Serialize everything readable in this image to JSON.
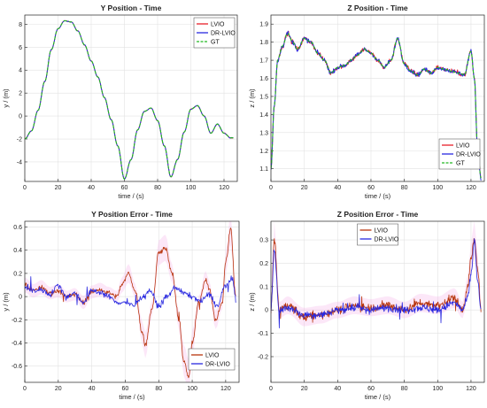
{
  "chart_data": [
    {
      "type": "line",
      "title": "Y Position - Time",
      "xlabel": "time / (s)",
      "ylabel": "y / (m)",
      "xlim": [
        0,
        128
      ],
      "ylim": [
        -5.7,
        8.8
      ],
      "xticks": [
        0,
        20,
        40,
        60,
        80,
        100,
        120
      ],
      "yticks": [
        -4,
        -2,
        0,
        2,
        4,
        6,
        8
      ],
      "grid": true,
      "legend": "top-right",
      "series": [
        {
          "name": "LVIO",
          "color": "#e8202a",
          "style": "solid"
        },
        {
          "name": "DR-LVIO",
          "color": "#2a2ae0",
          "style": "solid"
        },
        {
          "name": "GT",
          "color": "#22b922",
          "style": "dashed"
        }
      ],
      "x": [
        0,
        4,
        8,
        12,
        16,
        20,
        24,
        28,
        32,
        36,
        40,
        44,
        48,
        52,
        56,
        60,
        64,
        68,
        72,
        76,
        80,
        84,
        88,
        92,
        96,
        100,
        104,
        108,
        112,
        116,
        120,
        124,
        126
      ],
      "y": [
        -2.0,
        -1.3,
        0.5,
        3.0,
        5.8,
        7.6,
        8.3,
        8.2,
        7.4,
        6.2,
        4.8,
        3.4,
        1.6,
        -0.3,
        -2.6,
        -5.5,
        -3.8,
        -1.2,
        0.4,
        0.7,
        -0.4,
        -2.6,
        -5.3,
        -3.8,
        -1.4,
        0.6,
        0.9,
        0.0,
        -1.5,
        -0.7,
        -1.5,
        -1.9,
        -1.9
      ]
    },
    {
      "type": "line",
      "title": "Z Position - Time",
      "xlabel": "time / (s)",
      "ylabel": "z / (m)",
      "xlim": [
        0,
        128
      ],
      "ylim": [
        1.03,
        1.95
      ],
      "xticks": [
        0,
        20,
        40,
        60,
        80,
        100,
        120
      ],
      "yticks": [
        1.1,
        1.2,
        1.3,
        1.4,
        1.5,
        1.6,
        1.7,
        1.8,
        1.9
      ],
      "grid": true,
      "legend": "bottom-right",
      "series": [
        {
          "name": "LVIO",
          "color": "#e8202a",
          "style": "solid"
        },
        {
          "name": "DR-LVIO",
          "color": "#2a2ae0",
          "style": "solid"
        },
        {
          "name": "GT",
          "color": "#22b922",
          "style": "dashed"
        }
      ],
      "x": [
        0,
        2,
        4,
        7,
        10,
        13,
        16,
        20,
        24,
        28,
        32,
        36,
        40,
        44,
        48,
        52,
        56,
        60,
        64,
        68,
        72,
        76,
        80,
        84,
        88,
        92,
        96,
        100,
        104,
        108,
        112,
        116,
        120,
        122,
        124,
        126
      ],
      "y": [
        1.1,
        1.45,
        1.7,
        1.78,
        1.85,
        1.8,
        1.76,
        1.82,
        1.8,
        1.74,
        1.7,
        1.63,
        1.66,
        1.67,
        1.7,
        1.73,
        1.76,
        1.74,
        1.7,
        1.66,
        1.7,
        1.82,
        1.68,
        1.64,
        1.62,
        1.65,
        1.63,
        1.66,
        1.65,
        1.64,
        1.63,
        1.62,
        1.75,
        1.6,
        1.2,
        1.05
      ]
    },
    {
      "type": "line",
      "title": "Y Position Error - Time",
      "xlabel": "time / (s)",
      "ylabel": "y / (m)",
      "xlim": [
        0,
        128
      ],
      "ylim": [
        -0.74,
        0.65
      ],
      "xticks": [
        0,
        20,
        40,
        60,
        80,
        100,
        120
      ],
      "yticks": [
        -0.6,
        -0.4,
        -0.2,
        0,
        0.2,
        0.4,
        0.6
      ],
      "grid": true,
      "legend": "bottom-right",
      "series": [
        {
          "name": "LVIO",
          "color": "#b8360e",
          "x": [
            0,
            5,
            10,
            15,
            20,
            25,
            30,
            35,
            40,
            45,
            50,
            55,
            58,
            62,
            66,
            70,
            72,
            76,
            80,
            84,
            88,
            92,
            95,
            98,
            100,
            104,
            108,
            110,
            114,
            118,
            120,
            123,
            126
          ],
          "y": [
            0.1,
            0.05,
            0.08,
            0.03,
            0.05,
            0.0,
            0.02,
            -0.05,
            0.04,
            0.06,
            0.03,
            0.0,
            0.1,
            0.2,
            0.05,
            -0.3,
            -0.42,
            -0.1,
            0.38,
            0.42,
            0.2,
            -0.2,
            -0.55,
            -0.7,
            -0.4,
            -0.05,
            0.15,
            0.08,
            -0.2,
            -0.05,
            0.3,
            0.58,
            0.0
          ]
        },
        {
          "name": "DR-LVIO",
          "color": "#2a2ae0",
          "x": [
            0,
            5,
            10,
            15,
            20,
            25,
            30,
            35,
            40,
            45,
            50,
            55,
            60,
            65,
            70,
            75,
            80,
            85,
            90,
            95,
            100,
            105,
            110,
            115,
            120,
            124,
            126
          ],
          "y": [
            0.08,
            0.05,
            0.06,
            0.02,
            0.1,
            0.0,
            0.03,
            -0.05,
            0.05,
            0.04,
            0.0,
            -0.05,
            -0.05,
            -0.08,
            0.0,
            0.05,
            -0.08,
            0.0,
            0.08,
            0.03,
            0.0,
            -0.04,
            0.02,
            -0.08,
            0.1,
            0.15,
            0.0
          ]
        }
      ]
    },
    {
      "type": "line",
      "title": "Z Position Error - Time",
      "xlabel": "time / (s)",
      "ylabel": "z / (m)",
      "xlim": [
        0,
        128
      ],
      "ylim": [
        -0.31,
        0.38
      ],
      "xticks": [
        0,
        20,
        40,
        60,
        80,
        100,
        120
      ],
      "yticks": [
        -0.2,
        -0.1,
        0,
        0.1,
        0.2,
        0.3
      ],
      "grid": true,
      "legend": "top-center",
      "series": [
        {
          "name": "LVIO",
          "color": "#b8360e",
          "x": [
            0,
            2,
            5,
            10,
            20,
            30,
            40,
            50,
            60,
            70,
            80,
            90,
            100,
            110,
            115,
            118,
            120,
            122,
            124,
            126
          ],
          "y": [
            0.0,
            0.3,
            0.0,
            0.02,
            -0.03,
            -0.02,
            0.0,
            0.02,
            0.01,
            0.02,
            0.0,
            0.03,
            0.02,
            0.05,
            0.0,
            0.1,
            0.22,
            0.3,
            0.18,
            0.0
          ]
        },
        {
          "name": "DR-LVIO",
          "color": "#2a2ae0",
          "x": [
            0,
            2,
            5,
            10,
            20,
            30,
            40,
            50,
            60,
            70,
            80,
            90,
            100,
            110,
            115,
            118,
            120,
            122,
            124,
            126
          ],
          "y": [
            0.0,
            0.25,
            0.0,
            0.01,
            -0.02,
            -0.02,
            0.0,
            0.01,
            0.0,
            0.01,
            0.0,
            0.01,
            0.0,
            0.03,
            0.0,
            0.05,
            0.15,
            0.3,
            0.12,
            0.0
          ]
        }
      ]
    }
  ]
}
